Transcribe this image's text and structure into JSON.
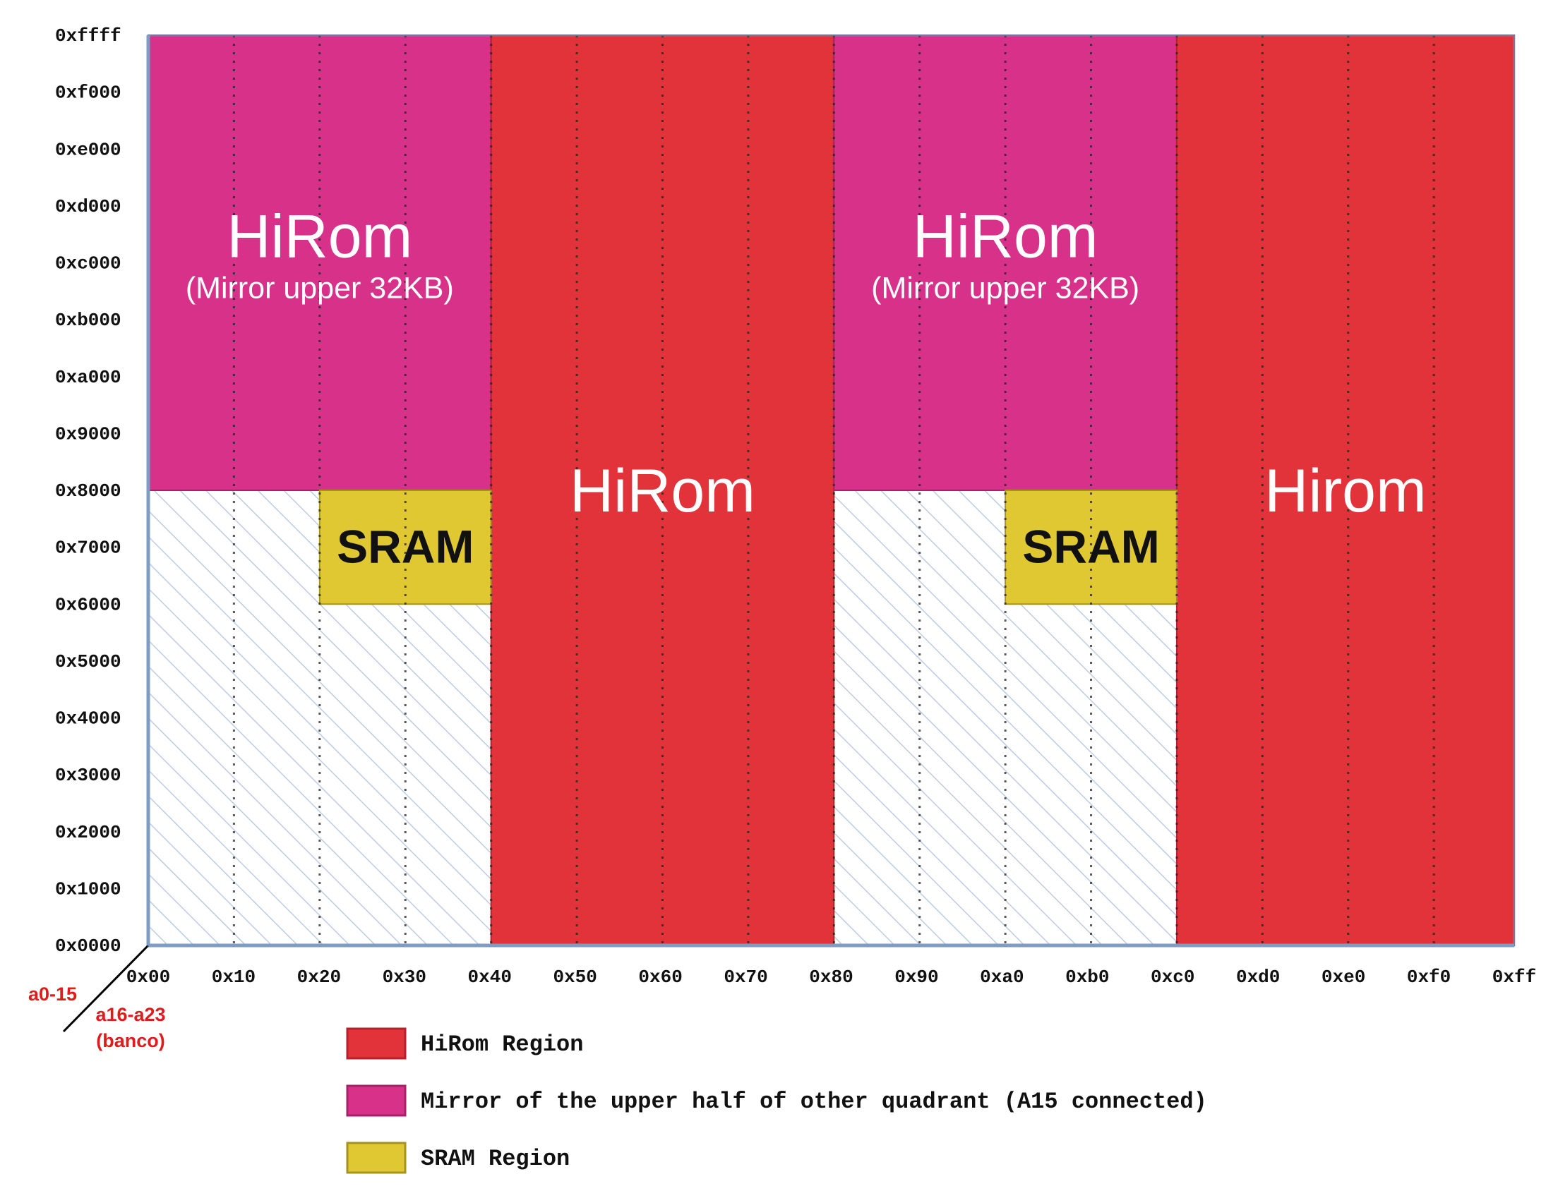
{
  "y_axis": {
    "label": "a0-15",
    "ticks": [
      "0xffff",
      "0xf000",
      "0xe000",
      "0xd000",
      "0xc000",
      "0xb000",
      "0xa000",
      "0x9000",
      "0x8000",
      "0x7000",
      "0x6000",
      "0x5000",
      "0x4000",
      "0x3000",
      "0x2000",
      "0x1000",
      "0x0000"
    ]
  },
  "x_axis": {
    "label_line1": "a16-a23",
    "label_line2": "(banco)",
    "ticks": [
      "0x00",
      "0x10",
      "0x20",
      "0x30",
      "0x40",
      "0x50",
      "0x60",
      "0x70",
      "0x80",
      "0x90",
      "0xa0",
      "0xb0",
      "0xc0",
      "0xd0",
      "0xe0",
      "0xf0",
      "0xff"
    ]
  },
  "regions": [
    {
      "kind": "mirror",
      "bank_start": 0,
      "bank_end": 64,
      "addr_start": 32768,
      "addr_end": 65535,
      "label": "HiRom",
      "sublabel": "(Mirror upper 32KB)"
    },
    {
      "kind": "hirom",
      "bank_start": 64,
      "bank_end": 128,
      "addr_start": 0,
      "addr_end": 65535,
      "label": "HiRom",
      "sublabel": ""
    },
    {
      "kind": "sram",
      "bank_start": 32,
      "bank_end": 64,
      "addr_start": 24576,
      "addr_end": 32768,
      "label": "SRAM",
      "sublabel": ""
    },
    {
      "kind": "mirror",
      "bank_start": 128,
      "bank_end": 192,
      "addr_start": 32768,
      "addr_end": 65535,
      "label": "HiRom",
      "sublabel": "(Mirror upper 32KB)"
    },
    {
      "kind": "hirom",
      "bank_start": 192,
      "bank_end": 255,
      "addr_start": 0,
      "addr_end": 65535,
      "label": "Hirom",
      "sublabel": ""
    },
    {
      "kind": "sram",
      "bank_start": 160,
      "bank_end": 192,
      "addr_start": 24576,
      "addr_end": 32768,
      "label": "SRAM",
      "sublabel": ""
    }
  ],
  "legend": [
    {
      "kind": "hirom",
      "label": "HiRom Region"
    },
    {
      "kind": "mirror",
      "label": "Mirror of the upper half of other quadrant (A15 connected)"
    },
    {
      "kind": "sram",
      "label": "SRAM Region"
    }
  ],
  "colors": {
    "hirom": "#e2333a",
    "mirror": "#d8318a",
    "sram": "#e0c832",
    "hatch": "#bccde0",
    "axis": "#7f9cc4"
  }
}
